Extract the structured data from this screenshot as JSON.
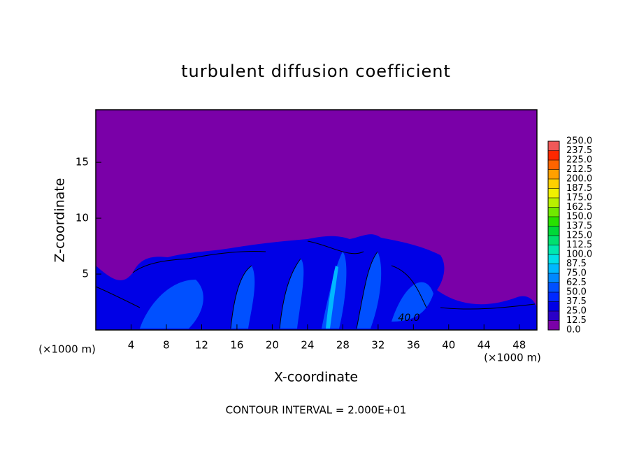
{
  "chart_data": {
    "type": "contour",
    "title": "turbulent diffusion coefficient",
    "x_label": "X-coordinate",
    "y_label": "Z-coordinate",
    "x_unit": "(×1000 m)",
    "y_unit": "(×1000 m)",
    "xlim": [
      0,
      50
    ],
    "xticks": [
      4,
      8,
      12,
      16,
      20,
      24,
      28,
      32,
      36,
      40,
      44,
      48
    ],
    "ylim": [
      0,
      19.7
    ],
    "yticks": [
      5,
      10,
      15
    ],
    "contour_label": "40.0",
    "footer": "CONTOUR INTERVAL = 2.000E+01",
    "colorbar": {
      "levels": [
        {
          "value": 0,
          "label": "0.0"
        },
        {
          "value": 12.5,
          "label": "12.5"
        },
        {
          "value": 25,
          "label": "25.0"
        },
        {
          "value": 37.5,
          "label": "37.5"
        },
        {
          "value": 50,
          "label": "50.0"
        },
        {
          "value": 62.5,
          "label": "62.5"
        },
        {
          "value": 75,
          "label": "75.0"
        },
        {
          "value": 87.5,
          "label": "87.5"
        },
        {
          "value": 100,
          "label": "100.0"
        },
        {
          "value": 112.5,
          "label": "112.5"
        },
        {
          "value": 125,
          "label": "125.0"
        },
        {
          "value": 137.5,
          "label": "137.5"
        },
        {
          "value": 150,
          "label": "150.0"
        },
        {
          "value": 162.5,
          "label": "162.5"
        },
        {
          "value": 175,
          "label": "175.0"
        },
        {
          "value": 187.5,
          "label": "187.5"
        },
        {
          "value": 200,
          "label": "200.0"
        },
        {
          "value": 212.5,
          "label": "212.5"
        },
        {
          "value": 225,
          "label": "225.0"
        },
        {
          "value": 237.5,
          "label": "237.5"
        },
        {
          "value": 250,
          "label": "250.0"
        }
      ],
      "colors": [
        "#7a00a8",
        "#2a00c8",
        "#0000e6",
        "#0028ff",
        "#0050ff",
        "#0088ff",
        "#00b8ff",
        "#00e0e8",
        "#00e8b0",
        "#00e070",
        "#00d838",
        "#28e000",
        "#70e800",
        "#b8f000",
        "#f0f000",
        "#ffd000",
        "#ffa000",
        "#ff6400",
        "#ff2800",
        "#f05858"
      ]
    }
  }
}
